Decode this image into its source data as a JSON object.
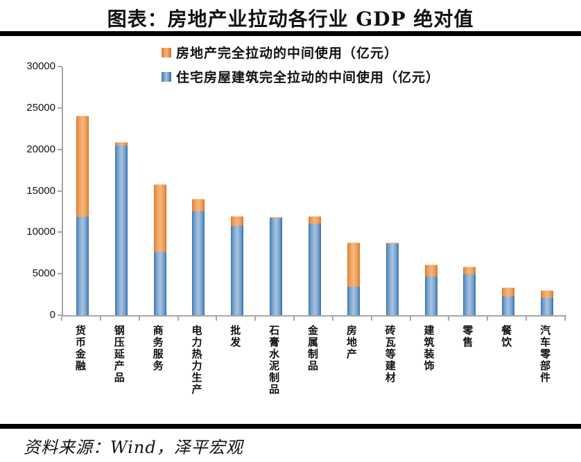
{
  "title": "图表：房地产业拉动各行业 GDP 绝对值",
  "source": "资料来源：Wind，泽平宏观",
  "colors": {
    "orange": "#e0762b",
    "blue": "#3a75b5",
    "axis": "#a6a6a6",
    "rule": "#000000"
  },
  "chart_data": {
    "type": "bar",
    "stacked": true,
    "title": "图表：房地产业拉动各行业 GDP 绝对值",
    "legend_position": "top-inside",
    "grid": false,
    "ylim": [
      0,
      30000
    ],
    "yticks": [
      0,
      5000,
      10000,
      15000,
      20000,
      25000,
      30000
    ],
    "categories": [
      "货币金融",
      "钢压延产品",
      "商务服务",
      "电力热力生产",
      "批发",
      "石膏水泥制品",
      "金属制品",
      "房地产",
      "砖瓦等建材",
      "建筑装饰",
      "零售",
      "餐饮",
      "汽车零部件"
    ],
    "series": [
      {
        "name": "房地产完全拉动的中间使用（亿元）",
        "color_key": "orange",
        "stack_order": "top",
        "values": [
          12100,
          300,
          8100,
          1500,
          1100,
          100,
          900,
          5300,
          100,
          1300,
          900,
          1000,
          800
        ]
      },
      {
        "name": "住宅房屋建筑完全拉动的中间使用（亿元）",
        "color_key": "blue",
        "stack_order": "bottom",
        "values": [
          11900,
          20500,
          7600,
          12500,
          10800,
          11700,
          11000,
          3400,
          8600,
          4700,
          4900,
          2300,
          2100
        ]
      }
    ],
    "totals": [
      24000,
      20800,
      15700,
      14000,
      11900,
      11800,
      11900,
      8700,
      8700,
      6000,
      5800,
      3300,
      2900
    ]
  }
}
